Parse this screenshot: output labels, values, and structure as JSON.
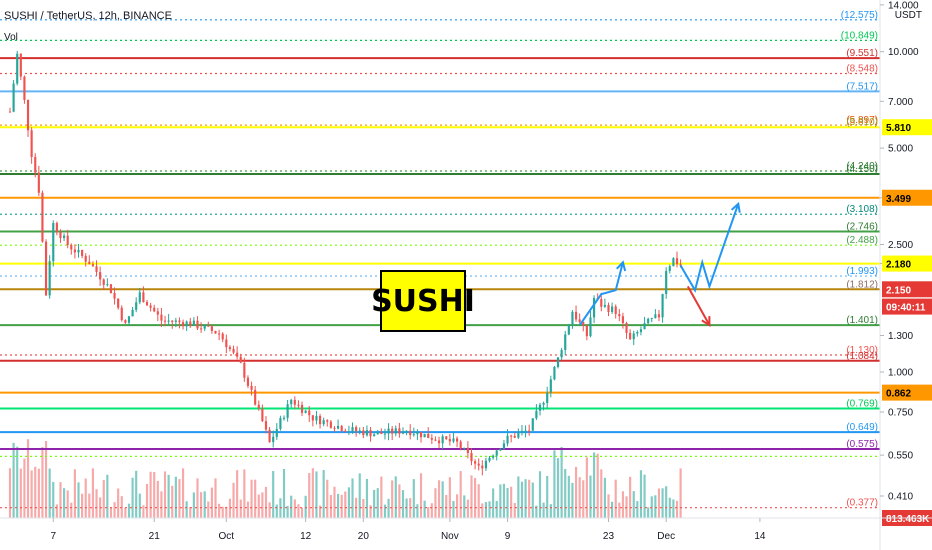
{
  "header": {
    "symbol_line": "SUSHI / TetherUS, 12h, BINANCE",
    "volume_label": "Vol"
  },
  "axis": {
    "unit_line1": "USDT",
    "unit_line2": ""
  },
  "badge_text": "SUSHI",
  "colors": {
    "up": "#26a69a",
    "down": "#ef5350",
    "up_vol": "#80cbc4",
    "down_vol": "#f7a8a8"
  },
  "chart_data": {
    "type": "candlestick",
    "title": "SUSHI / TetherUS, 12h, BINANCE",
    "y_scale": "log",
    "ylim": [
      0.35,
      14.5
    ],
    "price_ticks": [
      "14.000",
      "10.000",
      "7.000",
      "5.000",
      "3.499",
      "2.500",
      "2.180",
      "1.300",
      "1.000",
      "0.750",
      "0.550",
      "0.410"
    ],
    "x_tick_labels": [
      "7",
      "21",
      "Oct",
      "12",
      "20",
      "Nov",
      "9",
      "23",
      "Dec",
      "14"
    ],
    "x_tick_dates": [
      "2020-09-07",
      "2020-09-21",
      "2020-10-01",
      "2020-10-12",
      "2020-10-20",
      "2020-11-01",
      "2020-11-09",
      "2020-11-23",
      "2020-12-01",
      "2020-12-14"
    ],
    "date_range": [
      "2020-09-01",
      "2020-12-21"
    ],
    "levels": [
      {
        "price": 12.575,
        "label": "(12.575)",
        "color": "#2196f3",
        "style": "dotted",
        "label_color": "#2196f3"
      },
      {
        "price": 10.849,
        "label": "(10.849)",
        "color": "#00c853",
        "style": "dotted",
        "label_color": "#00c853"
      },
      {
        "price": 9.551,
        "label": "(9.551)",
        "color": "#d32f2f",
        "style": "solid",
        "label_color": "#d32f2f"
      },
      {
        "price": 8.548,
        "label": "(8.548)",
        "color": "#ef5350",
        "style": "dotted",
        "label_color": "#ef5350"
      },
      {
        "price": 7.517,
        "label": "(7.517)",
        "color": "#64b5f6",
        "style": "solid",
        "label_color": "#2196f3"
      },
      {
        "price": 5.897,
        "label": "(5.897)",
        "color": "#ff9800",
        "style": "dotted",
        "label_color": "#e65100"
      },
      {
        "price": 5.81,
        "label": "(5.810)",
        "color": "#ffff00",
        "style": "solid",
        "label_color": "#9e9d24"
      },
      {
        "price": 4.24,
        "label": "(4.240)",
        "color": "#43a047",
        "style": "dotted",
        "label_color": "#2e7d32"
      },
      {
        "price": 4.15,
        "label": "(4.150)",
        "color": "#2e7d32",
        "style": "solid",
        "label_color": "#2e7d32"
      },
      {
        "price": 3.499,
        "label": "",
        "color": "#ff9800",
        "style": "solid",
        "label_color": "#ff9800"
      },
      {
        "price": 3.108,
        "label": "(3.108)",
        "color": "#26a69a",
        "style": "dotted",
        "label_color": "#00897b"
      },
      {
        "price": 2.746,
        "label": "(2.746)",
        "color": "#43a047",
        "style": "solid",
        "label_color": "#2e7d32"
      },
      {
        "price": 2.488,
        "label": "(2.488)",
        "color": "#76ff03",
        "style": "dotted",
        "label_color": "#43a047"
      },
      {
        "price": 2.18,
        "label": "",
        "color": "#ffff00",
        "style": "solid",
        "label_color": "#9e9d24"
      },
      {
        "price": 1.993,
        "label": "(1.993)",
        "color": "#64b5f6",
        "style": "dotted",
        "label_color": "#2196f3"
      },
      {
        "price": 1.812,
        "label": "(1.812)",
        "color": "#b8860b",
        "style": "solid",
        "label_color": "#8d6e63"
      },
      {
        "price": 1.401,
        "label": "(1.401)",
        "color": "#43a047",
        "style": "solid",
        "label_color": "#2e7d32"
      },
      {
        "price": 1.13,
        "label": "(1.130)",
        "color": "#ef5350",
        "style": "dotted",
        "label_color": "#ef5350"
      },
      {
        "price": 1.084,
        "label": "(1.084)",
        "color": "#d32f2f",
        "style": "solid",
        "label_color": "#d32f2f"
      },
      {
        "price": 0.862,
        "label": "",
        "color": "#ff9800",
        "style": "solid",
        "label_color": "#ff9800"
      },
      {
        "price": 0.769,
        "label": "(0.769)",
        "color": "#00e676",
        "style": "solid",
        "label_color": "#00c853"
      },
      {
        "price": 0.649,
        "label": "(0.649)",
        "color": "#2196f3",
        "style": "solid",
        "label_color": "#2196f3"
      },
      {
        "price": 0.575,
        "label": "(0.575)",
        "color": "#8e24aa",
        "style": "solid",
        "label_color": "#8e24aa"
      },
      {
        "price": 0.545,
        "label": "",
        "color": "#76ff03",
        "style": "dotted",
        "label_color": "#43a047"
      },
      {
        "price": 0.377,
        "label": "(0.377)",
        "color": "#ef5350",
        "style": "dotted",
        "label_color": "#ef5350"
      }
    ],
    "price_tags": [
      {
        "price": 5.81,
        "text": "5.810",
        "bg": "#ffff00",
        "fg": "#000000"
      },
      {
        "price": 3.499,
        "text": "3.499",
        "bg": "#ff9800",
        "fg": "#000000"
      },
      {
        "price": 2.18,
        "text": "2.180",
        "bg": "#ffff00",
        "fg": "#000000"
      },
      {
        "price": 1.812,
        "text": "2.150",
        "bg": "#e53935",
        "fg": "#ffffff"
      },
      {
        "price": 1.6,
        "text": "09:40:11",
        "bg": "#e53935",
        "fg": "#ffffff"
      },
      {
        "price": 0.862,
        "text": "0.862",
        "bg": "#ff9800",
        "fg": "#000000"
      },
      {
        "price": 0.35,
        "text": "813.463K",
        "bg": "#e53935",
        "fg": "#ffffff"
      }
    ],
    "keypoints": [
      {
        "date": "2020-09-01",
        "price": 6.5
      },
      {
        "date": "2020-09-02",
        "price": 9.8
      },
      {
        "date": "2020-09-03",
        "price": 7.0
      },
      {
        "date": "2020-09-04",
        "price": 4.8
      },
      {
        "date": "2020-09-05",
        "price": 3.7
      },
      {
        "date": "2020-09-06",
        "price": 1.75
      },
      {
        "date": "2020-09-07",
        "price": 2.9
      },
      {
        "date": "2020-09-09",
        "price": 2.5
      },
      {
        "date": "2020-09-12",
        "price": 2.2
      },
      {
        "date": "2020-09-15",
        "price": 1.8
      },
      {
        "date": "2020-09-17",
        "price": 1.4
      },
      {
        "date": "2020-09-19",
        "price": 1.75
      },
      {
        "date": "2020-09-22",
        "price": 1.45
      },
      {
        "date": "2020-09-26",
        "price": 1.42
      },
      {
        "date": "2020-09-30",
        "price": 1.32
      },
      {
        "date": "2020-10-03",
        "price": 1.05
      },
      {
        "date": "2020-10-06",
        "price": 0.7
      },
      {
        "date": "2020-10-07",
        "price": 0.6
      },
      {
        "date": "2020-10-10",
        "price": 0.82
      },
      {
        "date": "2020-10-13",
        "price": 0.72
      },
      {
        "date": "2020-10-18",
        "price": 0.66
      },
      {
        "date": "2020-10-22",
        "price": 0.64
      },
      {
        "date": "2020-10-26",
        "price": 0.66
      },
      {
        "date": "2020-10-30",
        "price": 0.62
      },
      {
        "date": "2020-11-02",
        "price": 0.6
      },
      {
        "date": "2020-11-05",
        "price": 0.5
      },
      {
        "date": "2020-11-07",
        "price": 0.56
      },
      {
        "date": "2020-11-09",
        "price": 0.62
      },
      {
        "date": "2020-11-12",
        "price": 0.66
      },
      {
        "date": "2020-11-14",
        "price": 0.82
      },
      {
        "date": "2020-11-16",
        "price": 1.1
      },
      {
        "date": "2020-11-18",
        "price": 1.55
      },
      {
        "date": "2020-11-20",
        "price": 1.3
      },
      {
        "date": "2020-11-21",
        "price": 1.7
      },
      {
        "date": "2020-11-22",
        "price": 1.62
      },
      {
        "date": "2020-11-24",
        "price": 1.55
      },
      {
        "date": "2020-11-26",
        "price": 1.25
      },
      {
        "date": "2020-11-28",
        "price": 1.4
      },
      {
        "date": "2020-11-30",
        "price": 1.5
      },
      {
        "date": "2020-12-01",
        "price": 2.1
      },
      {
        "date": "2020-12-02",
        "price": 2.25
      },
      {
        "date": "2020-12-03",
        "price": 2.15
      }
    ],
    "arrows": [
      {
        "color": "#2196f3",
        "points": [
          {
            "date": "2020-11-19",
            "price": 1.4
          },
          {
            "date": "2020-11-22",
            "price": 1.75
          },
          {
            "date": "2020-11-24",
            "price": 1.8
          },
          {
            "date": "2020-11-25",
            "price": 2.2
          }
        ]
      },
      {
        "color": "#2196f3",
        "points": [
          {
            "date": "2020-12-03",
            "price": 2.15
          },
          {
            "date": "2020-12-05",
            "price": 1.8
          },
          {
            "date": "2020-12-06",
            "price": 2.2
          },
          {
            "date": "2020-12-07",
            "price": 1.85
          },
          {
            "date": "2020-12-11",
            "price": 3.35
          }
        ]
      },
      {
        "color": "#e53935",
        "points": [
          {
            "date": "2020-12-04",
            "price": 1.85
          },
          {
            "date": "2020-12-07",
            "price": 1.4
          }
        ]
      }
    ]
  }
}
